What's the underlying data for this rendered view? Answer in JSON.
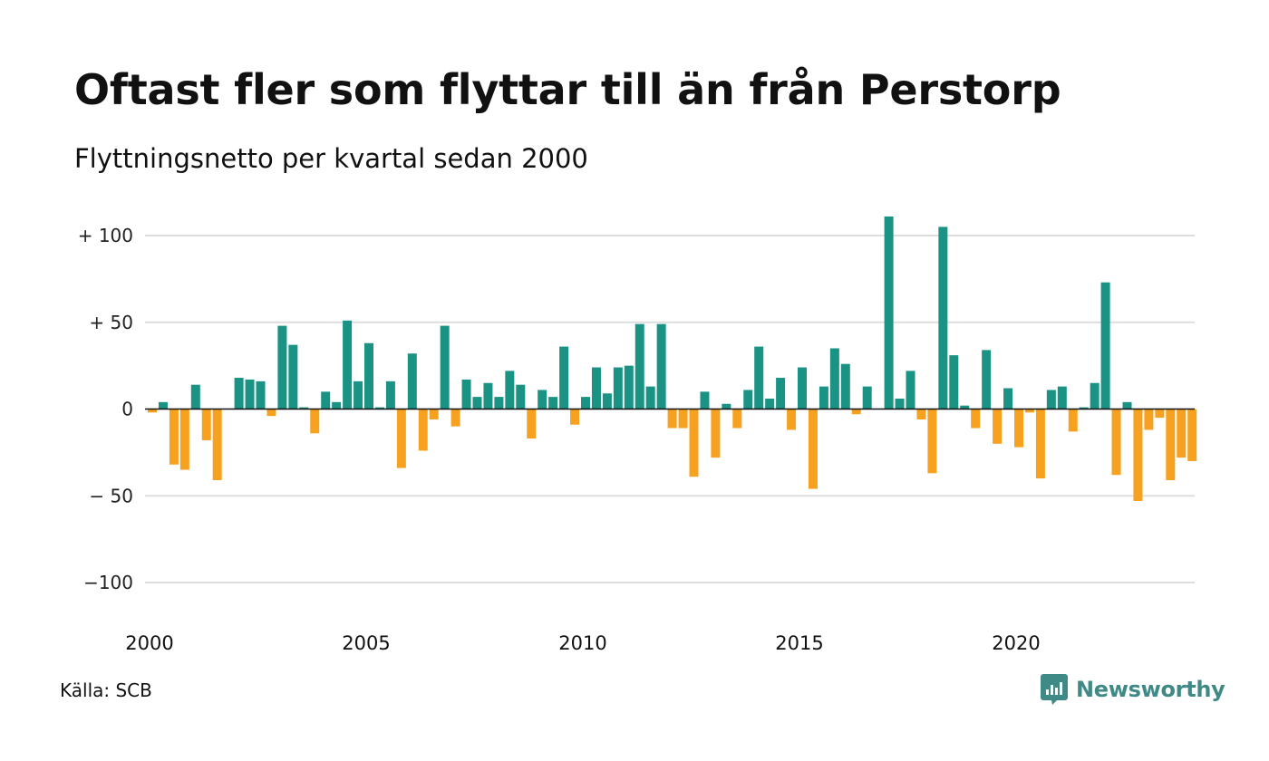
{
  "header": {
    "title": "Oftast fler som flyttar till än från Perstorp",
    "subtitle": "Flyttningsnetto per kvartal sedan 2000"
  },
  "footer": {
    "source": "Källa: SCB",
    "brand": "Newsworthy",
    "brand_icon": "newsworthy-logo-icon"
  },
  "colors": {
    "positive": "#1a9384",
    "negative": "#f7a121",
    "grid": "#dddddd",
    "zero_line": "#111111"
  },
  "chart_data": {
    "type": "bar",
    "x_start": "2000 Q1",
    "frequency": "quarter",
    "yticks": [
      100,
      50,
      0,
      -50,
      -100
    ],
    "ytick_labels": [
      "+ 100",
      "+  50",
      "0",
      "− 50",
      "−100"
    ],
    "xtick_labels": [
      "2000",
      "2005",
      "2010",
      "2015",
      "2020"
    ],
    "ylim": [
      -100,
      100
    ],
    "grid": true,
    "values": [
      -2,
      4,
      -32,
      -35,
      14,
      -18,
      -41,
      0,
      18,
      17,
      16,
      -4,
      48,
      37,
      1,
      -14,
      10,
      4,
      51,
      16,
      38,
      1,
      16,
      -34,
      32,
      -24,
      -6,
      48,
      -10,
      17,
      7,
      15,
      7,
      22,
      14,
      -17,
      11,
      7,
      36,
      -9,
      7,
      24,
      9,
      24,
      25,
      49,
      13,
      49,
      -11,
      -11,
      -39,
      10,
      -28,
      3,
      -11,
      11,
      36,
      6,
      18,
      -12,
      24,
      -46,
      13,
      35,
      26,
      -3,
      13,
      0,
      111,
      6,
      22,
      -6,
      -37,
      105,
      31,
      2,
      -11,
      34,
      -20,
      12,
      -22,
      -2,
      -40,
      11,
      13,
      -13,
      1,
      15,
      73,
      -38,
      4,
      -53,
      -12,
      -5,
      -41,
      -28,
      -30
    ]
  }
}
